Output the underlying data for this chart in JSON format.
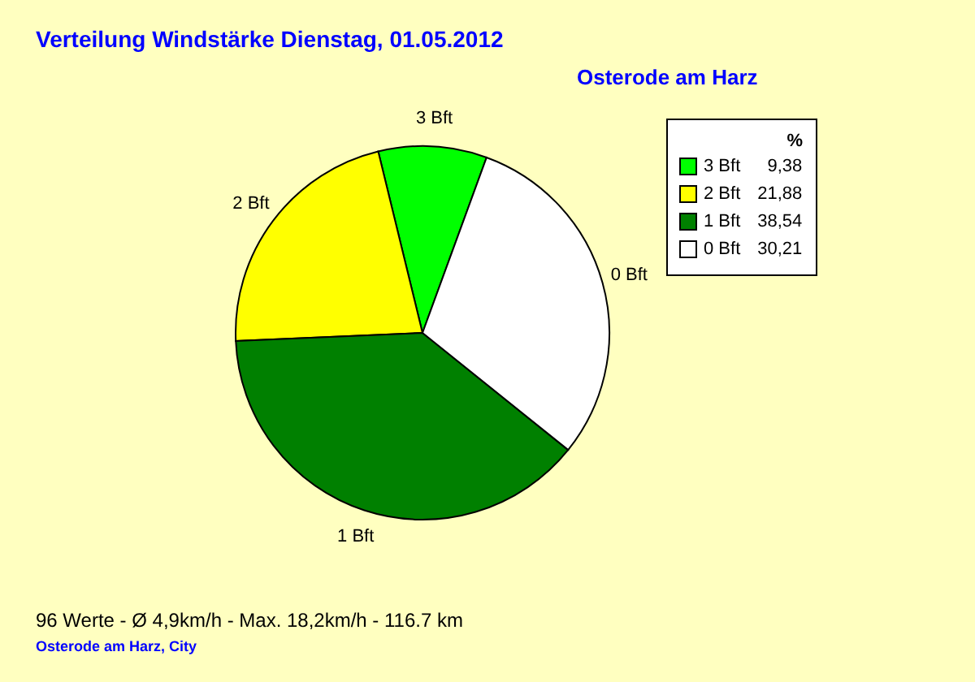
{
  "chart_data": {
    "type": "pie",
    "title": "Verteilung Windstärke  Dienstag, 01.05.2012",
    "subtitle": "Osterode am Harz",
    "legend_title": "%",
    "legend": "top right",
    "categories": [
      "3 Bft",
      "2 Bft",
      "1 Bft",
      "0 Bft"
    ],
    "values": [
      9.38,
      21.88,
      38.54,
      30.21
    ],
    "value_labels": [
      "9,38",
      "21,88",
      "38,54",
      "30,21"
    ],
    "colors": [
      "#00ff00",
      "#ffff00",
      "#008000",
      "#ffffff"
    ],
    "annotations": [
      "96 Werte   -   Ø 4,9km/h  -  Max. 18,2km/h   -   116.7 km",
      "Osterode am Harz, City"
    ]
  }
}
